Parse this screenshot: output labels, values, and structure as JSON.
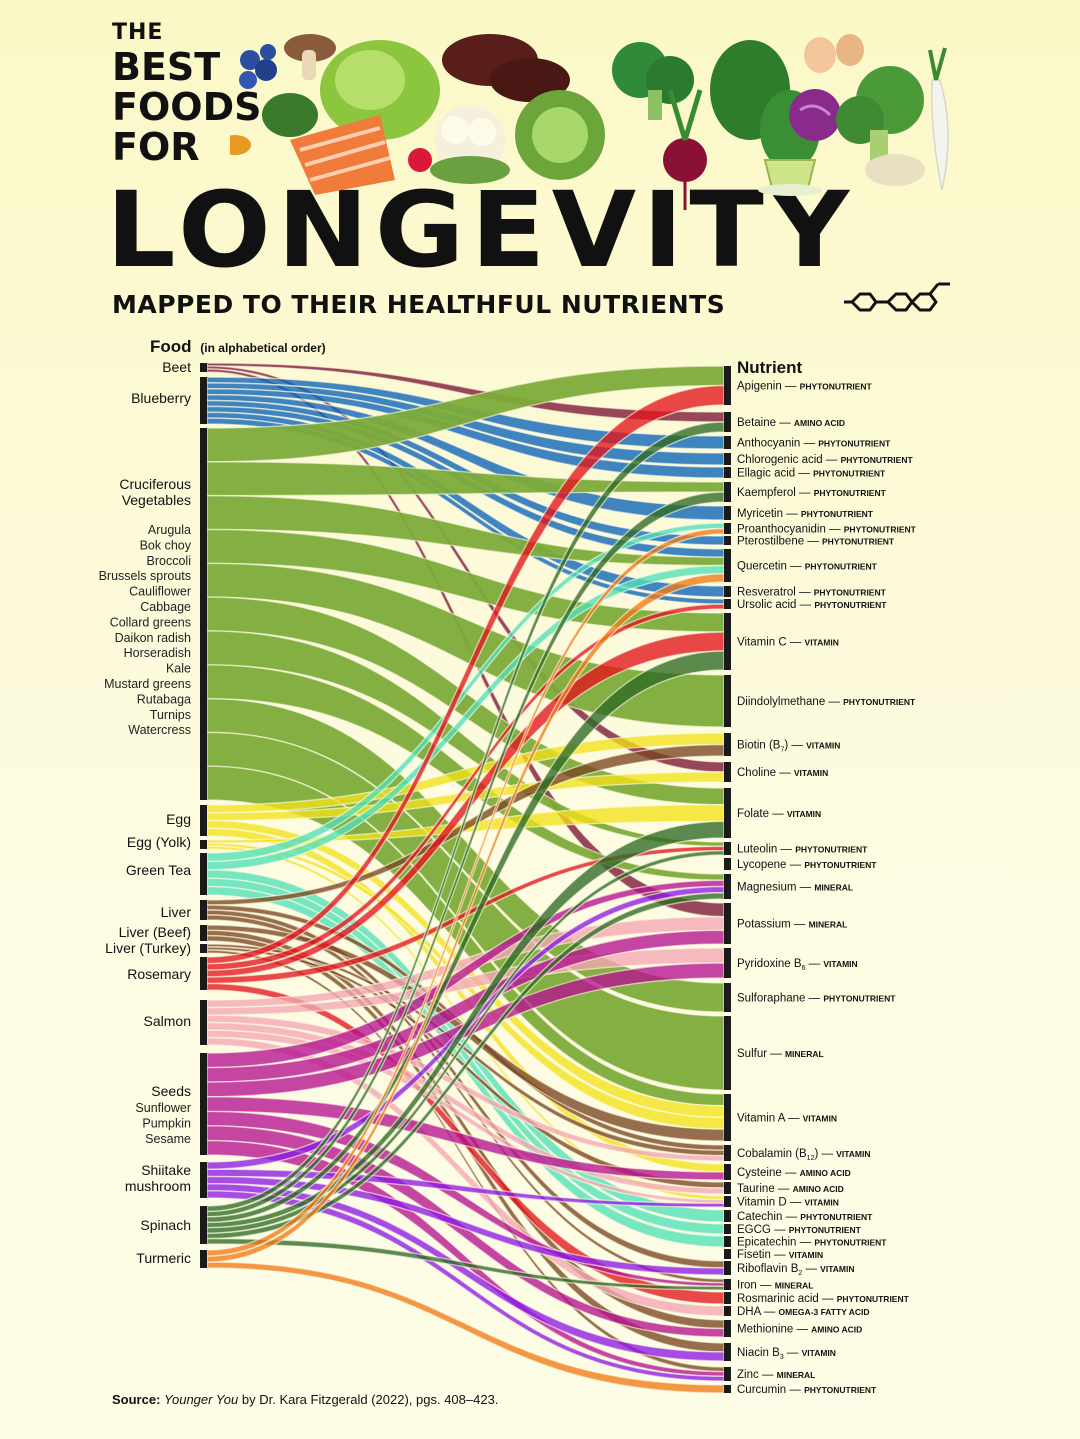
{
  "title": {
    "line1": "THE",
    "line2": "BEST",
    "line3": "FOODS",
    "line4": "FOR",
    "main": "LONGEVITY",
    "subtitle": "MAPPED TO THEIR HEALTHFUL NUTRIENTS"
  },
  "left_header": {
    "label": "Food",
    "note": "(in alphabetical order)"
  },
  "right_header": "Nutrient",
  "foods": [
    {
      "name": "Beet",
      "color": "#7b1535",
      "sub": []
    },
    {
      "name": "Blueberry",
      "color": "#0a63b8",
      "sub": []
    },
    {
      "name_lines": [
        "Cruciferous",
        "Vegetables"
      ],
      "color": "#7dab3a",
      "sub": [
        "Arugula",
        "Bok choy",
        "Broccoli",
        "Brussels sprouts",
        "Cauliflower",
        "Cabbage",
        "Collard greens",
        "Daikon radish",
        "Horseradish",
        "Kale",
        "Mustard greens",
        "Rutabaga",
        "Turnips",
        "Watercress"
      ]
    },
    {
      "name": "Egg",
      "color": "#f2e21a",
      "sub": []
    },
    {
      "name": "Egg (Yolk)",
      "color": "#f2e21a",
      "sub": []
    },
    {
      "name": "Green Tea",
      "color": "#4fe0b7",
      "sub": []
    },
    {
      "name": "Liver",
      "color": "#7a4520",
      "sub": []
    },
    {
      "name": "Liver (Beef)",
      "color": "#7a4520",
      "sub": []
    },
    {
      "name": "Liver (Turkey)",
      "color": "#7a4520",
      "sub": []
    },
    {
      "name": "Rosemary",
      "color": "#e3151c",
      "sub": []
    },
    {
      "name": "Salmon",
      "color": "#f3a6b4",
      "sub": []
    },
    {
      "name": "Seeds",
      "color": "#b5128f",
      "sub": [
        "Sunflower",
        "Pumpkin",
        "Sesame"
      ]
    },
    {
      "name_lines": [
        "Shiitake",
        "mushroom"
      ],
      "color": "#8d19e6",
      "sub": []
    },
    {
      "name": "Spinach",
      "color": "#2e6a25",
      "sub": []
    },
    {
      "name": "Turmeric",
      "color": "#f07a17",
      "sub": []
    }
  ],
  "nutrients": [
    {
      "name": "Apigenin",
      "type": "PHYTONUTRIENT"
    },
    {
      "name": "Betaine",
      "type": "AMINO ACID"
    },
    {
      "name": "Anthocyanin",
      "type": "PHYTONUTRIENT"
    },
    {
      "name": "Chlorogenic acid",
      "type": "PHYTONUTRIENT"
    },
    {
      "name": "Ellagic acid",
      "type": "PHYTONUTRIENT"
    },
    {
      "name": "Kaempferol",
      "type": "PHYTONUTRIENT"
    },
    {
      "name": "Myricetin",
      "type": "PHYTONUTRIENT"
    },
    {
      "name": "Proanthocyanidin",
      "type": "PHYTONUTRIENT"
    },
    {
      "name": "Pterostilbene",
      "type": "PHYTONUTRIENT"
    },
    {
      "name": "Quercetin",
      "type": "PHYTONUTRIENT"
    },
    {
      "name": "Resveratrol",
      "type": "PHYTONUTRIENT"
    },
    {
      "name": "Ursolic acid",
      "type": "PHYTONUTRIENT"
    },
    {
      "name": "Vitamin C",
      "type": "VITAMIN"
    },
    {
      "name": "Diindolylmethane",
      "type": "PHYTONUTRIENT"
    },
    {
      "name": "Biotin (B",
      "sub": "7",
      "after": ")",
      "type": "VITAMIN"
    },
    {
      "name": "Choline",
      "type": "VITAMIN"
    },
    {
      "name": "Folate",
      "type": "VITAMIN"
    },
    {
      "name": "Luteolin",
      "type": "PHYTONUTRIENT"
    },
    {
      "name": "Lycopene",
      "type": "PHYTONUTRIENT"
    },
    {
      "name": "Magnesium",
      "type": "MINERAL"
    },
    {
      "name": "Potassium",
      "type": "MINERAL"
    },
    {
      "name": "Pyridoxine B",
      "sub": "6",
      "after": "",
      "type": "VITAMIN"
    },
    {
      "name": "Sulforaphane",
      "type": "PHYTONUTRIENT"
    },
    {
      "name": "Sulfur",
      "type": "MINERAL"
    },
    {
      "name": "Vitamin A",
      "type": "VITAMIN"
    },
    {
      "name": "Cobalamin (B",
      "sub": "12",
      "after": ")",
      "type": "VITAMIN"
    },
    {
      "name": "Cysteine",
      "type": "AMINO ACID"
    },
    {
      "name": "Taurine",
      "type": "AMINO ACID"
    },
    {
      "name": "Vitamin D",
      "type": "VITAMIN"
    },
    {
      "name": "Catechin",
      "type": "PHYTONUTRIENT"
    },
    {
      "name": "EGCG",
      "type": "PHYTONUTRIENT"
    },
    {
      "name": "Epicatechin",
      "type": "PHYTONUTRIENT"
    },
    {
      "name": "Fisetin",
      "type": "VITAMIN"
    },
    {
      "name": "Riboflavin B",
      "sub": "2",
      "after": "",
      "type": "VITAMIN"
    },
    {
      "name": "Iron",
      "type": "MINERAL"
    },
    {
      "name": "Rosmarinic acid",
      "type": "PHYTONUTRIENT"
    },
    {
      "name": "DHA",
      "type": "OMEGA-3 FATTY ACID"
    },
    {
      "name": "Methionine",
      "type": "AMINO ACID"
    },
    {
      "name": "Niacin B",
      "sub": "3",
      "after": "",
      "type": "VITAMIN"
    },
    {
      "name": "Zinc",
      "type": "MINERAL"
    },
    {
      "name": "Curcumin",
      "type": "PHYTONUTRIENT"
    }
  ],
  "links": [
    {
      "f": 0,
      "n": 1
    },
    {
      "f": 0,
      "n": 15
    },
    {
      "f": 0,
      "n": 20
    },
    {
      "f": 1,
      "n": 2
    },
    {
      "f": 1,
      "n": 3
    },
    {
      "f": 1,
      "n": 4
    },
    {
      "f": 1,
      "n": 6
    },
    {
      "f": 1,
      "n": 8
    },
    {
      "f": 1,
      "n": 9
    },
    {
      "f": 1,
      "n": 10
    },
    {
      "f": 1,
      "n": 11
    },
    {
      "f": 2,
      "n": 0
    },
    {
      "f": 2,
      "n": 5
    },
    {
      "f": 2,
      "n": 9
    },
    {
      "f": 2,
      "n": 12
    },
    {
      "f": 2,
      "n": 13
    },
    {
      "f": 2,
      "n": 16
    },
    {
      "f": 2,
      "n": 22
    },
    {
      "f": 2,
      "n": 23
    },
    {
      "f": 2,
      "n": 24
    },
    {
      "f": 2,
      "n": 19
    },
    {
      "f": 2,
      "n": 17
    },
    {
      "f": 3,
      "n": 14
    },
    {
      "f": 3,
      "n": 15
    },
    {
      "f": 3,
      "n": 24
    },
    {
      "f": 3,
      "n": 26
    },
    {
      "f": 4,
      "n": 16
    },
    {
      "f": 4,
      "n": 24
    },
    {
      "f": 4,
      "n": 28
    },
    {
      "f": 5,
      "n": 29
    },
    {
      "f": 5,
      "n": 30
    },
    {
      "f": 5,
      "n": 31
    },
    {
      "f": 5,
      "n": 9
    },
    {
      "f": 5,
      "n": 7
    },
    {
      "f": 6,
      "n": 14
    },
    {
      "f": 6,
      "n": 25
    },
    {
      "f": 6,
      "n": 33
    },
    {
      "f": 6,
      "n": 34
    },
    {
      "f": 7,
      "n": 24
    },
    {
      "f": 7,
      "n": 37
    },
    {
      "f": 7,
      "n": 38
    },
    {
      "f": 8,
      "n": 25
    },
    {
      "f": 8,
      "n": 27
    },
    {
      "f": 8,
      "n": 39
    },
    {
      "f": 9,
      "n": 11
    },
    {
      "f": 9,
      "n": 35
    },
    {
      "f": 9,
      "n": 0
    },
    {
      "f": 9,
      "n": 17
    },
    {
      "f": 9,
      "n": 12
    },
    {
      "f": 10,
      "n": 36
    },
    {
      "f": 10,
      "n": 28
    },
    {
      "f": 10,
      "n": 25
    },
    {
      "f": 10,
      "n": 27
    },
    {
      "f": 10,
      "n": 21
    },
    {
      "f": 10,
      "n": 20
    },
    {
      "f": 11,
      "n": 19
    },
    {
      "f": 11,
      "n": 39
    },
    {
      "f": 11,
      "n": 34
    },
    {
      "f": 11,
      "n": 20
    },
    {
      "f": 11,
      "n": 37
    },
    {
      "f": 11,
      "n": 21
    },
    {
      "f": 11,
      "n": 26
    },
    {
      "f": 12,
      "n": 38
    },
    {
      "f": 12,
      "n": 28
    },
    {
      "f": 12,
      "n": 33
    },
    {
      "f": 12,
      "n": 39
    },
    {
      "f": 12,
      "n": 19
    },
    {
      "f": 13,
      "n": 16
    },
    {
      "f": 13,
      "n": 19
    },
    {
      "f": 13,
      "n": 34
    },
    {
      "f": 13,
      "n": 5
    },
    {
      "f": 13,
      "n": 17
    },
    {
      "f": 13,
      "n": 12
    },
    {
      "f": 13,
      "n": 1
    },
    {
      "f": 14,
      "n": 40
    },
    {
      "f": 14,
      "n": 9
    },
    {
      "f": 14,
      "n": 7
    }
  ],
  "source": {
    "label": "Source:",
    "book": "Younger You",
    "rest": " by Dr. Kara Fitzgerald (2022), pgs. 408–423."
  }
}
